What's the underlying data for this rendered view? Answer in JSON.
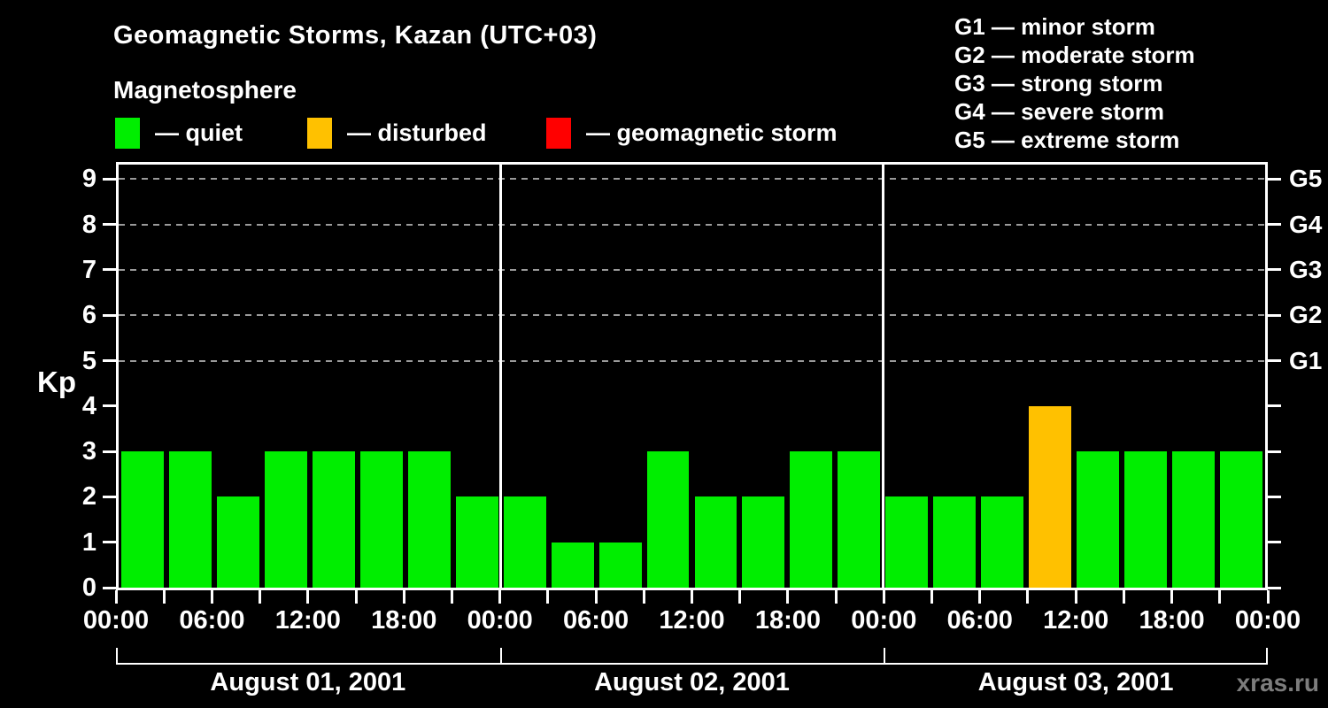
{
  "header": {
    "title": "Geomagnetic Storms, Kazan (UTC+03)",
    "subtitle": "Magnetosphere",
    "legend": [
      {
        "name": "quiet",
        "label": "— quiet",
        "color": "#00ee00"
      },
      {
        "name": "disturbed",
        "label": "— disturbed",
        "color": "#ffc100"
      },
      {
        "name": "storm",
        "label": "— geomagnetic storm",
        "color": "#ff0000"
      }
    ],
    "storm_scale": [
      "G1 — minor storm",
      "G2 — moderate storm",
      "G3 — strong storm",
      "G4 — severe storm",
      "G5 — extreme storm"
    ]
  },
  "chart_data": {
    "type": "bar",
    "title": "Geomagnetic Storms, Kazan (UTC+03)",
    "ylabel": "Kp",
    "ylim": [
      0,
      9.32
    ],
    "yticks": [
      0,
      1,
      2,
      3,
      4,
      5,
      6,
      7,
      8,
      9
    ],
    "grid_levels": [
      5,
      6,
      7,
      8,
      9
    ],
    "grid_on": true,
    "right_axis_labels": [
      {
        "kp": 9,
        "label": "G5"
      },
      {
        "kp": 8,
        "label": "G4"
      },
      {
        "kp": 7,
        "label": "G3"
      },
      {
        "kp": 6,
        "label": "G2"
      },
      {
        "kp": 5,
        "label": "G1"
      }
    ],
    "hours_per_bar": 3,
    "x_tick_labels": [
      "00:00",
      "06:00",
      "12:00",
      "18:00",
      "00:00",
      "06:00",
      "12:00",
      "18:00",
      "00:00",
      "06:00",
      "12:00",
      "18:00",
      "00:00"
    ],
    "days": [
      {
        "date": "August 01, 2001",
        "values": [
          3,
          3,
          2,
          3,
          3,
          3,
          3,
          2
        ]
      },
      {
        "date": "August 02, 2001",
        "values": [
          2,
          1,
          1,
          3,
          2,
          2,
          3,
          3
        ]
      },
      {
        "date": "August 03, 2001",
        "values": [
          2,
          2,
          2,
          4,
          3,
          3,
          3,
          3
        ]
      }
    ],
    "bar_color_rule": {
      "quiet_max_kp": 3,
      "disturbed_max_kp": 4
    },
    "bar_colors": {
      "quiet": "#00ee00",
      "disturbed": "#ffc100",
      "storm": "#ff0000"
    }
  },
  "footer": {
    "watermark": "xras.ru"
  }
}
